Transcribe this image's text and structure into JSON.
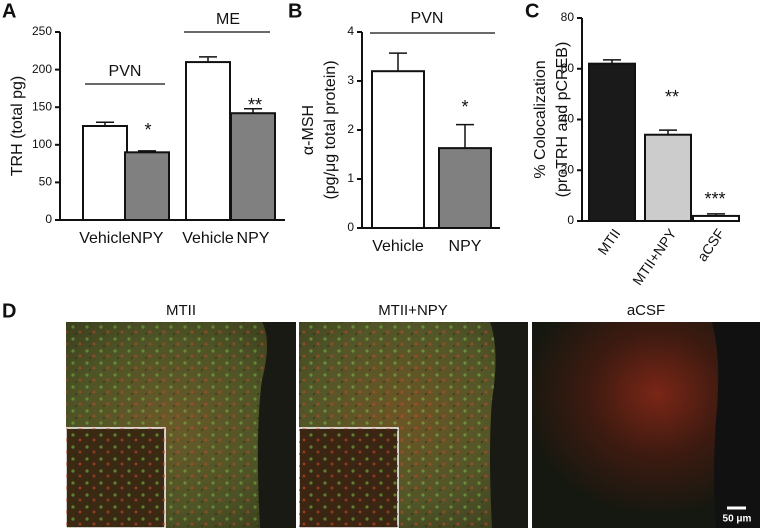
{
  "chart_data": [
    {
      "type": "bar",
      "panel_label": "A",
      "y_label": [
        "TRH (total pg)"
      ],
      "categories": [
        "Vehicle",
        "NPY",
        "Vehicle",
        "NPY"
      ],
      "values": [
        125,
        90,
        210,
        142
      ],
      "errors": [
        5,
        2,
        7,
        6
      ],
      "colors": [
        "#ffffff",
        "#808080",
        "#ffffff",
        "#808080"
      ],
      "ylim": [
        0,
        250
      ],
      "yticks": [
        0,
        50,
        100,
        150,
        200,
        250
      ],
      "annotations": [
        "PVN",
        "ME",
        "*",
        "**"
      ]
    },
    {
      "type": "bar",
      "panel_label": "B",
      "y_label": [
        "α-MSH",
        "(pg/μg total protein)"
      ],
      "categories": [
        "Vehicle",
        "NPY"
      ],
      "values": [
        3.2,
        1.63
      ],
      "errors": [
        0.37,
        0.48
      ],
      "colors": [
        "#ffffff",
        "#808080"
      ],
      "ylim": [
        0,
        4
      ],
      "yticks": [
        0,
        1,
        2,
        3,
        4
      ],
      "annotations": [
        "PVN",
        "*"
      ]
    },
    {
      "type": "bar",
      "panel_label": "C",
      "y_label": [
        "% Colocalization",
        "(proTRH and pCREB)"
      ],
      "categories": [
        "MTII",
        "MTII+NPY",
        "aCSF"
      ],
      "values": [
        62,
        34,
        2
      ],
      "errors": [
        1.5,
        1.8,
        0.8
      ],
      "colors": [
        "#1a1a1a",
        "#cccccc",
        "#ffffff"
      ],
      "ylim": [
        0,
        80
      ],
      "yticks": [
        0,
        20,
        40,
        60,
        80
      ],
      "annotations": [
        "**",
        "***"
      ]
    }
  ],
  "panel_d": {
    "panel_label": "D",
    "images": [
      "MTII",
      "MTII+NPY",
      "aCSF"
    ],
    "scale_bar": "50 μm"
  }
}
